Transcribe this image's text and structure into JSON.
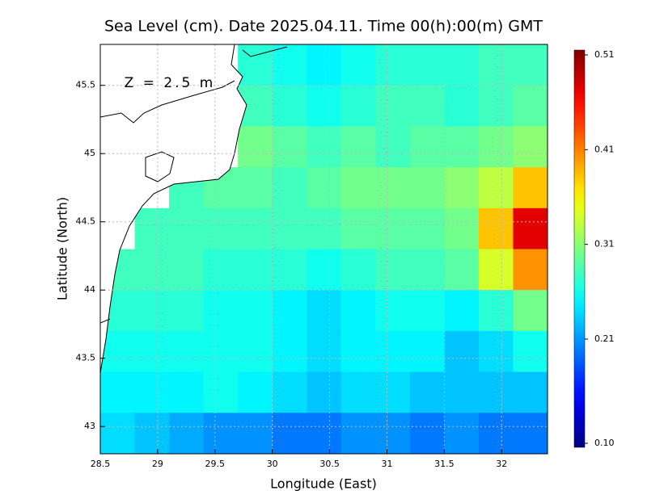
{
  "chart_data": {
    "type": "heatmap",
    "title": "Sea Level (cm). Date 2025.04.11. Time 00(h):00(m) GMT",
    "annotation": "Z = 2.5 m",
    "xlabel": "Longitude (East)",
    "ylabel": "Latitude (North)",
    "xlim": [
      28.5,
      32.4
    ],
    "ylim": [
      42.8,
      45.8
    ],
    "xticks": [
      28.5,
      29,
      29.5,
      30,
      30.5,
      31,
      31.5,
      32
    ],
    "yticks": [
      43,
      43.5,
      44,
      44.5,
      45,
      45.5
    ],
    "grid": true,
    "colormap": "jet",
    "colorbar_lim": [
      0.1,
      0.51
    ],
    "colorbar_ticks": [
      {
        "value": 0.1,
        "label": "0.10"
      },
      0.21,
      0.31,
      0.41,
      0.51
    ],
    "xbins": [
      28.5,
      28.8,
      29.1,
      29.4,
      29.7,
      30.0,
      30.3,
      30.6,
      30.9,
      31.2,
      31.5,
      31.8,
      32.1,
      32.4
    ],
    "ybins": [
      45.8,
      45.5,
      45.2,
      44.9,
      44.6,
      44.3,
      44.0,
      43.7,
      43.4,
      43.1,
      42.8
    ],
    "values": [
      [
        null,
        null,
        null,
        null,
        0.27,
        0.26,
        0.25,
        0.26,
        0.27,
        0.27,
        0.27,
        0.28,
        0.28
      ],
      [
        null,
        null,
        null,
        null,
        0.28,
        0.27,
        0.26,
        0.27,
        0.28,
        0.28,
        0.27,
        0.28,
        0.29
      ],
      [
        null,
        null,
        null,
        null,
        0.3,
        0.29,
        0.28,
        0.29,
        0.28,
        0.29,
        0.29,
        0.3,
        0.31
      ],
      [
        null,
        null,
        0.28,
        0.29,
        0.29,
        0.28,
        0.29,
        0.3,
        0.3,
        0.3,
        0.31,
        0.33,
        0.38
      ],
      [
        null,
        0.28,
        0.28,
        0.28,
        0.28,
        0.28,
        0.28,
        0.29,
        0.29,
        0.29,
        0.3,
        0.38,
        0.47
      ],
      [
        0.28,
        0.28,
        0.28,
        0.27,
        0.27,
        0.27,
        0.26,
        0.27,
        0.28,
        0.28,
        0.29,
        0.34,
        0.4
      ],
      [
        0.27,
        0.27,
        0.27,
        0.26,
        0.26,
        0.25,
        0.24,
        0.25,
        0.26,
        0.26,
        0.25,
        0.27,
        0.3
      ],
      [
        0.26,
        0.26,
        0.26,
        0.26,
        0.26,
        0.25,
        0.24,
        0.25,
        0.25,
        0.25,
        0.23,
        0.24,
        0.26
      ],
      [
        0.25,
        0.25,
        0.25,
        0.26,
        0.25,
        0.24,
        0.23,
        0.24,
        0.24,
        0.23,
        0.23,
        0.23,
        0.23
      ],
      [
        0.24,
        0.23,
        0.22,
        0.21,
        0.21,
        0.2,
        0.2,
        0.21,
        0.21,
        0.2,
        0.21,
        0.2,
        0.2
      ]
    ]
  }
}
